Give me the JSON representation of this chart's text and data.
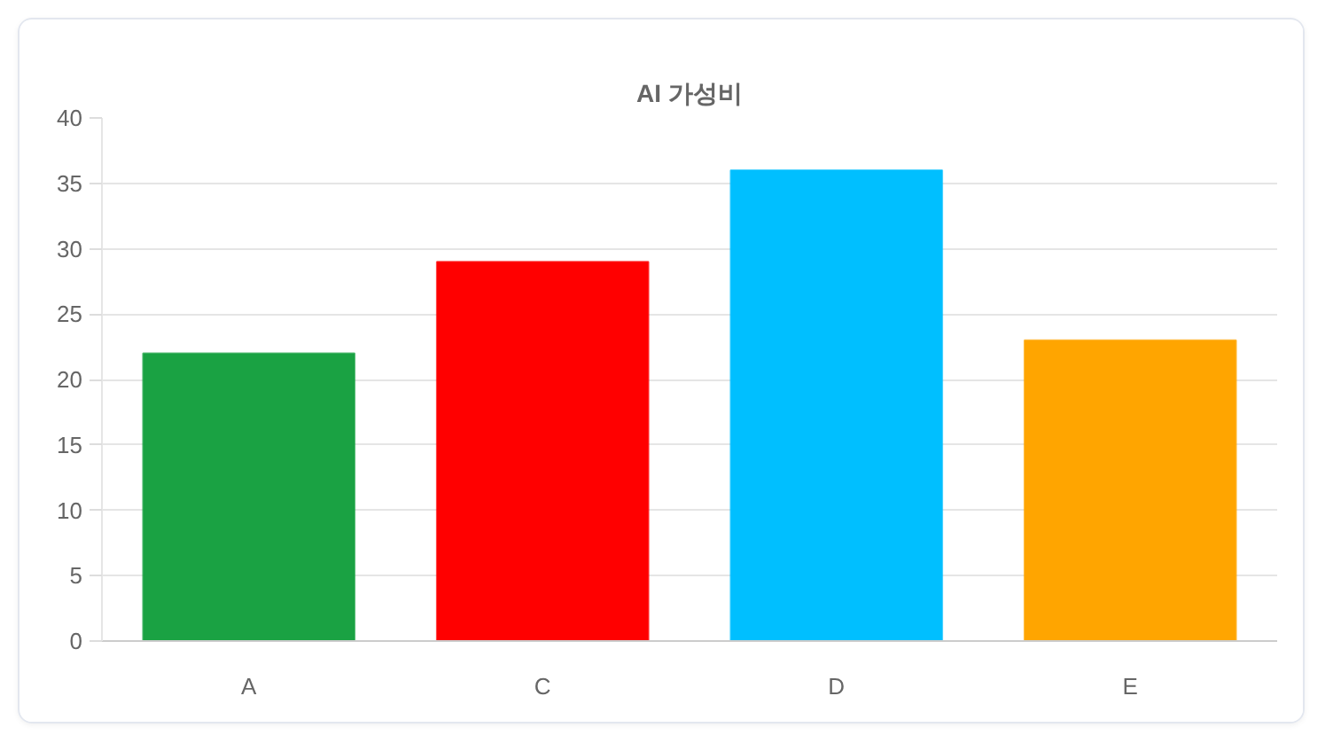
{
  "chart_data": {
    "type": "bar",
    "title": "AI 가성비",
    "categories": [
      "A",
      "C",
      "D",
      "E"
    ],
    "values": [
      22,
      29,
      36,
      23
    ],
    "colors": [
      "#1aa243",
      "#ff0000",
      "#00bfff",
      "#ffa500"
    ],
    "ylim": [
      0,
      40
    ],
    "yticks": [
      0,
      5,
      10,
      15,
      20,
      25,
      30,
      35,
      40
    ],
    "grid": "y"
  }
}
